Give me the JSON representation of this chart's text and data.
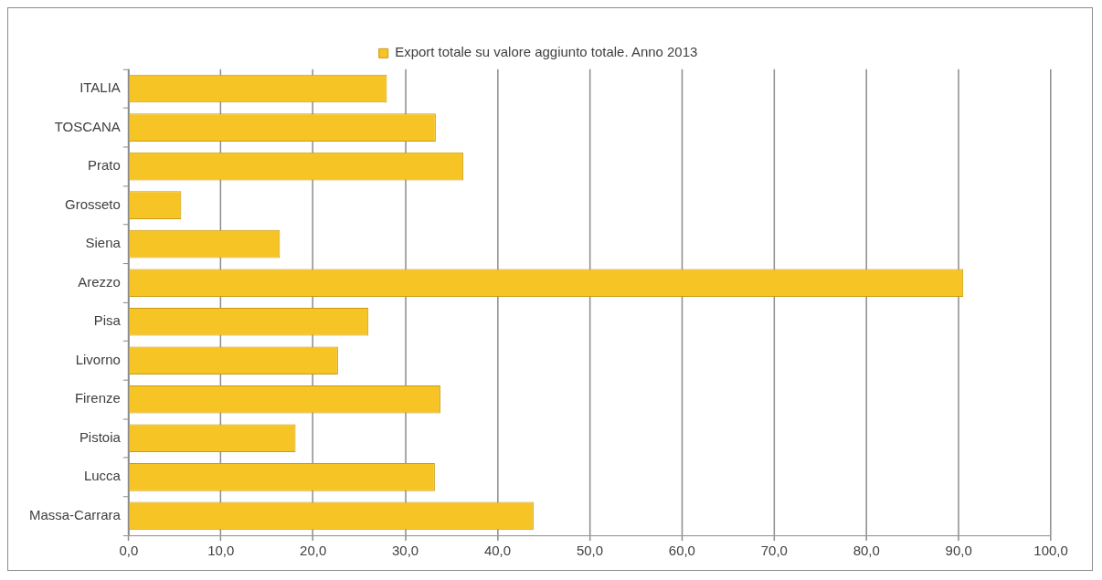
{
  "chart_data": {
    "type": "bar",
    "orientation": "horizontal",
    "categories": [
      "ITALIA",
      "TOSCANA",
      "Prato",
      "Grosseto",
      "Siena",
      "Arezzo",
      "Pisa",
      "Livorno",
      "Firenze",
      "Pistoia",
      "Lucca",
      "Massa-Carrara"
    ],
    "series": [
      {
        "name": "Export totale su valore aggiunto totale. Anno 2013",
        "color": "#f7c426",
        "values": [
          28,
          33.3,
          36.3,
          5.7,
          16.4,
          90.5,
          26,
          22.7,
          33.8,
          18.1,
          33.2,
          43.9
        ]
      }
    ],
    "xlim": [
      0,
      100
    ],
    "xticks": [
      {
        "value": 0,
        "label": "0,0"
      },
      {
        "value": 10,
        "label": "10,0"
      },
      {
        "value": 20,
        "label": "20,0"
      },
      {
        "value": 30,
        "label": "30,0"
      },
      {
        "value": 40,
        "label": "40,0"
      },
      {
        "value": 50,
        "label": "50,0"
      },
      {
        "value": 60,
        "label": "60,0"
      },
      {
        "value": 70,
        "label": "70,0"
      },
      {
        "value": 80,
        "label": "80,0"
      },
      {
        "value": 90,
        "label": "90,0"
      },
      {
        "value": 100,
        "label": "100,0"
      }
    ],
    "grid": "x",
    "legend": "top"
  }
}
